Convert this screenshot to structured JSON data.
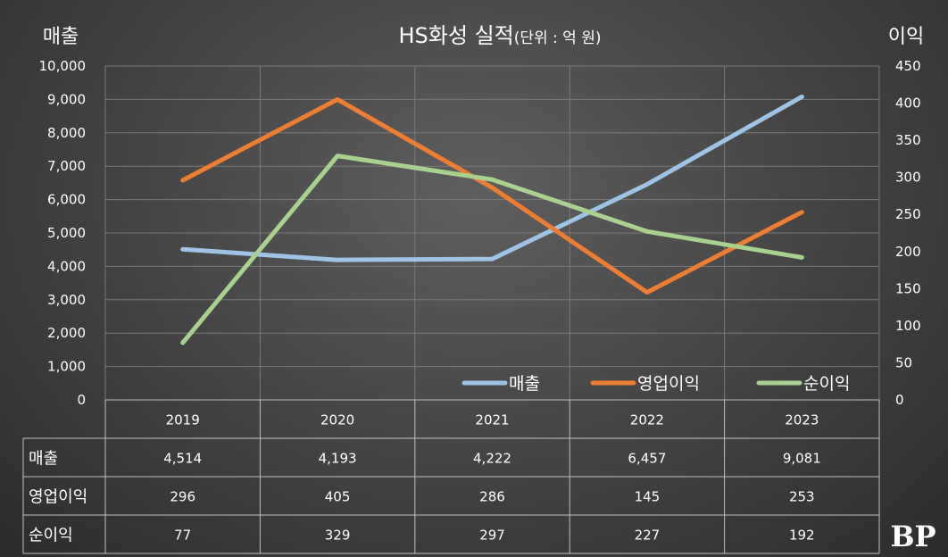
{
  "chart_data": {
    "type": "line",
    "title": "HS화성 실적",
    "title_unit": "(단위 : 억 원)",
    "left_axis_label": "매출",
    "right_axis_label": "이익",
    "categories": [
      "2019",
      "2020",
      "2021",
      "2022",
      "2023"
    ],
    "left_ylim": [
      0,
      10000
    ],
    "left_ticks": [
      "0",
      "1,000",
      "2,000",
      "3,000",
      "4,000",
      "5,000",
      "6,000",
      "7,000",
      "8,000",
      "9,000",
      "10,000"
    ],
    "right_ylim": [
      0,
      450
    ],
    "right_ticks": [
      "0",
      "50",
      "100",
      "150",
      "200",
      "250",
      "300",
      "350",
      "400",
      "450"
    ],
    "grid": true,
    "legend_position": "bottom-right",
    "series": [
      {
        "name": "매출",
        "axis": "left",
        "color": "#9dc3e6",
        "values": [
          4514,
          4193,
          4222,
          6457,
          9081
        ],
        "labels": [
          "4,514",
          "4,193",
          "4,222",
          "6,457",
          "9,081"
        ]
      },
      {
        "name": "영업이익",
        "axis": "right",
        "color": "#ed7d31",
        "values": [
          296,
          405,
          286,
          145,
          253
        ],
        "labels": [
          "296",
          "405",
          "286",
          "145",
          "253"
        ]
      },
      {
        "name": "순이익",
        "axis": "right",
        "color": "#a9d18e",
        "values": [
          77,
          329,
          297,
          227,
          192
        ],
        "labels": [
          "77",
          "329",
          "297",
          "227",
          "192"
        ]
      }
    ]
  },
  "logo_text": "BP"
}
